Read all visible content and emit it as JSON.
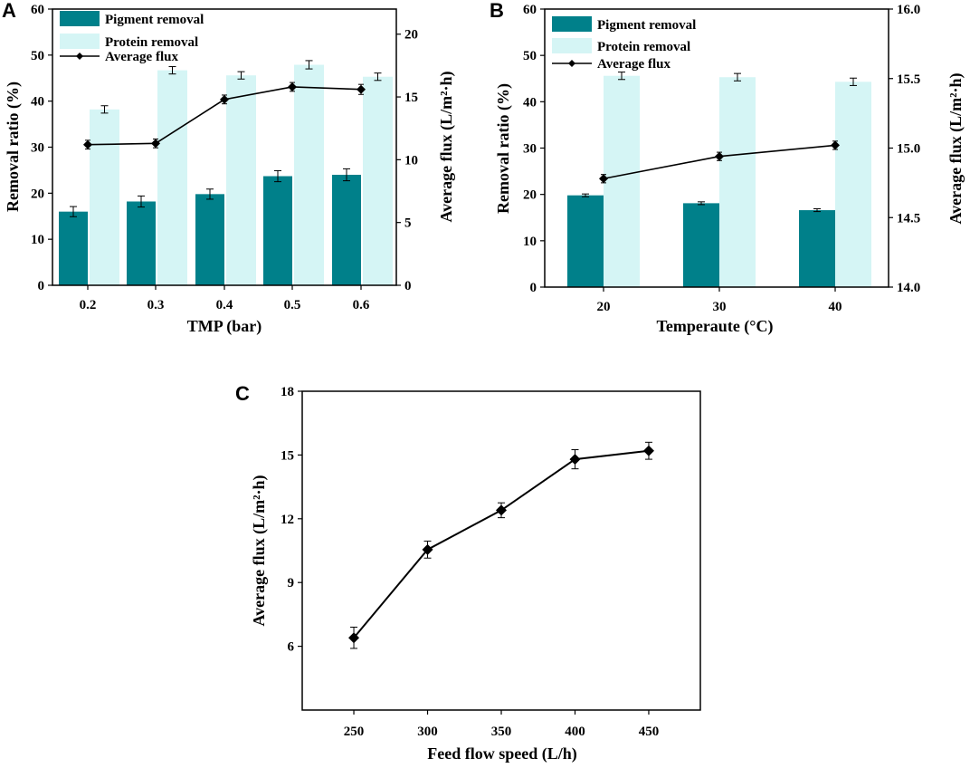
{
  "colors": {
    "pigment": "#00808a",
    "protein": "#d5f5f5",
    "line": "#000000"
  },
  "chart_data": [
    {
      "panel": "A",
      "type": "bar",
      "categories": [
        "0.2",
        "0.3",
        "0.4",
        "0.5",
        "0.6"
      ],
      "xlabel": "TMP (bar)",
      "ylabel": "Removal ratio (%)",
      "y2label": "Average flux (L/m²·h)",
      "ylim": [
        0,
        60
      ],
      "yticks": [
        "0",
        "10",
        "20",
        "30",
        "40",
        "50",
        "60"
      ],
      "y2lim": [
        0,
        22
      ],
      "y2ticks": [
        "0",
        "5",
        "10",
        "15",
        "20"
      ],
      "legend": [
        "Pigment removal",
        "Protein removal",
        "Average flux"
      ],
      "legend_position": "top-left",
      "series": [
        {
          "name": "Pigment removal",
          "kind": "bar",
          "values": [
            16.0,
            18.2,
            19.8,
            23.7,
            24.0
          ],
          "errors": [
            1.1,
            1.2,
            1.1,
            1.2,
            1.3
          ]
        },
        {
          "name": "Protein removal",
          "kind": "bar",
          "values": [
            38.2,
            46.7,
            45.6,
            47.9,
            45.3
          ],
          "errors": [
            0.8,
            0.8,
            0.8,
            0.9,
            0.8
          ]
        },
        {
          "name": "Average flux",
          "kind": "line",
          "axis": "right",
          "values": [
            11.2,
            11.3,
            14.8,
            15.8,
            15.6
          ],
          "errors": [
            0.35,
            0.35,
            0.35,
            0.35,
            0.4
          ]
        }
      ]
    },
    {
      "panel": "B",
      "type": "bar",
      "categories": [
        "20",
        "30",
        "40"
      ],
      "xlabel": "Temperaute (°C)",
      "ylabel": "Removal ratio (%)",
      "y2label": "Average flux (L/m²·h)",
      "ylim": [
        0,
        60
      ],
      "yticks": [
        "0",
        "10",
        "20",
        "30",
        "40",
        "50",
        "60"
      ],
      "y2lim": [
        14.0,
        16.0
      ],
      "y2ticks": [
        "14.0",
        "14.5",
        "15.0",
        "15.5",
        "16.0"
      ],
      "legend": [
        "Pigment removal",
        "Protein removal",
        "Average flux"
      ],
      "legend_position": "top-left",
      "series": [
        {
          "name": "Pigment removal",
          "kind": "bar",
          "values": [
            19.8,
            18.1,
            16.6
          ],
          "errors": [
            0.3,
            0.3,
            0.3
          ]
        },
        {
          "name": "Protein removal",
          "kind": "bar",
          "values": [
            45.6,
            45.3,
            44.3
          ],
          "errors": [
            0.8,
            0.8,
            0.8
          ]
        },
        {
          "name": "Average flux",
          "kind": "line",
          "axis": "right",
          "values": [
            14.78,
            14.94,
            15.02
          ],
          "errors": [
            0.03,
            0.03,
            0.03
          ]
        }
      ]
    },
    {
      "panel": "C",
      "type": "line",
      "x": [
        250,
        300,
        350,
        400,
        450
      ],
      "xticks": [
        "250",
        "300",
        "350",
        "400",
        "450"
      ],
      "xlim": [
        215,
        485
      ],
      "xlabel": "Feed flow speed (L/h)",
      "ylabel": "Average flux (L/m²·h)",
      "ylim": [
        3,
        18
      ],
      "yticks": [
        "6",
        "9",
        "12",
        "15",
        "18"
      ],
      "series": [
        {
          "name": "Average flux",
          "values": [
            6.4,
            10.55,
            12.4,
            14.8,
            15.2
          ],
          "errors": [
            0.5,
            0.4,
            0.35,
            0.45,
            0.4
          ]
        }
      ]
    }
  ]
}
